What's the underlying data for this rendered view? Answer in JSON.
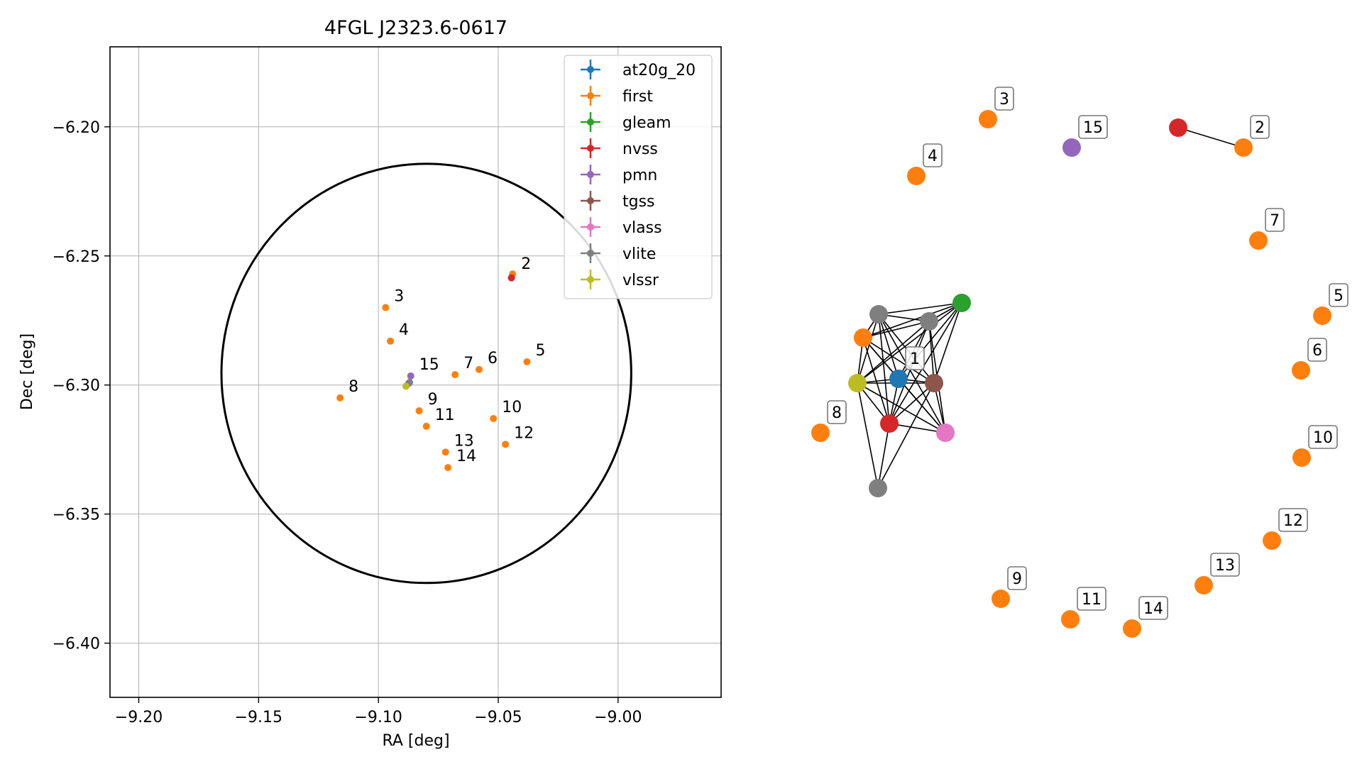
{
  "chart_data": [
    {
      "type": "scatter",
      "title": "4FGL J2323.6-0617",
      "xlabel": "RA [deg]",
      "ylabel": "Dec [deg]",
      "xlim": [
        -9.212,
        -8.957
      ],
      "ylim": [
        -6.421,
        -6.169
      ],
      "xticks": [
        -9.2,
        -9.15,
        -9.1,
        -9.05,
        -9.0
      ],
      "xtick_labels": [
        "−9.20",
        "−9.15",
        "−9.10",
        "−9.05",
        "−9.00"
      ],
      "yticks": [
        -6.2,
        -6.25,
        -6.3,
        -6.35,
        -6.4
      ],
      "ytick_labels": [
        "−6.20",
        "−6.25",
        "−6.30",
        "−6.35",
        "−6.40"
      ],
      "grid": true,
      "legend_position": "top-right",
      "ellipse": {
        "center": [
          -9.08,
          -6.2955
        ],
        "semi_axes": [
          0.0855,
          0.0812
        ],
        "color": "#000000"
      },
      "series": [
        {
          "name": "at20g_20",
          "color": "#1f77b4",
          "points": [
            {
              "x": -9.0875,
              "y": -6.2995
            }
          ]
        },
        {
          "name": "first",
          "color": "#ff7f0e",
          "points": [
            {
              "x": -9.044,
              "y": -6.257
            },
            {
              "x": -9.097,
              "y": -6.27
            },
            {
              "x": -9.095,
              "y": -6.283
            },
            {
              "x": -9.038,
              "y": -6.291
            },
            {
              "x": -9.058,
              "y": -6.294
            },
            {
              "x": -9.068,
              "y": -6.296
            },
            {
              "x": -9.116,
              "y": -6.305
            },
            {
              "x": -9.083,
              "y": -6.31
            },
            {
              "x": -9.052,
              "y": -6.313
            },
            {
              "x": -9.08,
              "y": -6.316
            },
            {
              "x": -9.047,
              "y": -6.323
            },
            {
              "x": -9.072,
              "y": -6.326
            },
            {
              "x": -9.071,
              "y": -6.332
            }
          ]
        },
        {
          "name": "gleam",
          "color": "#2ca02c",
          "points": [
            {
              "x": -9.0875,
              "y": -6.2995
            }
          ]
        },
        {
          "name": "nvss",
          "color": "#d62728",
          "points": [
            {
              "x": -9.0445,
              "y": -6.2585
            },
            {
              "x": -9.0875,
              "y": -6.2995
            }
          ]
        },
        {
          "name": "pmn",
          "color": "#9467bd",
          "points": [
            {
              "x": -9.0865,
              "y": -6.2965
            }
          ]
        },
        {
          "name": "tgss",
          "color": "#8c564b",
          "points": [
            {
              "x": -9.0875,
              "y": -6.2995
            }
          ]
        },
        {
          "name": "vlass",
          "color": "#e377c2",
          "points": [
            {
              "x": -9.0875,
              "y": -6.2995
            }
          ]
        },
        {
          "name": "vlite",
          "color": "#7f7f7f",
          "points": [
            {
              "x": -9.087,
              "y": -6.299
            }
          ]
        },
        {
          "name": "vlssr",
          "color": "#bcbd22",
          "points": [
            {
              "x": -9.0885,
              "y": -6.3005
            }
          ]
        }
      ],
      "annotations": [
        {
          "text": "1",
          "x": -9.0865,
          "y": -6.2965
        },
        {
          "text": "2",
          "x": -9.044,
          "y": -6.2575
        },
        {
          "text": "3",
          "x": -9.097,
          "y": -6.27
        },
        {
          "text": "4",
          "x": -9.095,
          "y": -6.283
        },
        {
          "text": "5",
          "x": -9.038,
          "y": -6.291
        },
        {
          "text": "6",
          "x": -9.058,
          "y": -6.294
        },
        {
          "text": "7",
          "x": -9.068,
          "y": -6.296
        },
        {
          "text": "8",
          "x": -9.116,
          "y": -6.305
        },
        {
          "text": "9",
          "x": -9.083,
          "y": -6.31
        },
        {
          "text": "10",
          "x": -9.052,
          "y": -6.313
        },
        {
          "text": "11",
          "x": -9.08,
          "y": -6.316
        },
        {
          "text": "12",
          "x": -9.047,
          "y": -6.323
        },
        {
          "text": "13",
          "x": -9.072,
          "y": -6.326
        },
        {
          "text": "14",
          "x": -9.071,
          "y": -6.332
        },
        {
          "text": "15",
          "x": -9.0865,
          "y": -6.2965
        }
      ]
    },
    {
      "type": "network",
      "nodes": [
        {
          "id": "n1",
          "color": "#1f77b4",
          "label": "1"
        },
        {
          "id": "n2",
          "color": "#ff7f0e",
          "label": ""
        },
        {
          "id": "n3",
          "color": "#2ca02c",
          "label": ""
        },
        {
          "id": "n4",
          "color": "#7f7f7f",
          "label": ""
        },
        {
          "id": "n5",
          "color": "#7f7f7f",
          "label": ""
        },
        {
          "id": "n6",
          "color": "#bcbd22",
          "label": ""
        },
        {
          "id": "n7",
          "color": "#8c564b",
          "label": ""
        },
        {
          "id": "n8",
          "color": "#d62728",
          "label": ""
        },
        {
          "id": "n9",
          "color": "#e377c2",
          "label": ""
        },
        {
          "id": "n10",
          "color": "#7f7f7f",
          "label": ""
        },
        {
          "id": "nvss2",
          "color": "#d62728",
          "label": ""
        },
        {
          "id": "first2",
          "color": "#ff7f0e",
          "label": "2"
        },
        {
          "id": "f3",
          "color": "#ff7f0e",
          "label": "3"
        },
        {
          "id": "f4",
          "color": "#ff7f0e",
          "label": "4"
        },
        {
          "id": "p15",
          "color": "#9467bd",
          "label": "15"
        },
        {
          "id": "f7",
          "color": "#ff7f0e",
          "label": "7"
        },
        {
          "id": "f5",
          "color": "#ff7f0e",
          "label": "5"
        },
        {
          "id": "f6",
          "color": "#ff7f0e",
          "label": "6"
        },
        {
          "id": "f8",
          "color": "#ff7f0e",
          "label": "8"
        },
        {
          "id": "f10",
          "color": "#ff7f0e",
          "label": "10"
        },
        {
          "id": "f12",
          "color": "#ff7f0e",
          "label": "12"
        },
        {
          "id": "f13",
          "color": "#ff7f0e",
          "label": "13"
        },
        {
          "id": "f9",
          "color": "#ff7f0e",
          "label": "9"
        },
        {
          "id": "f11",
          "color": "#ff7f0e",
          "label": "11"
        },
        {
          "id": "f14",
          "color": "#ff7f0e",
          "label": "14"
        }
      ],
      "edges": [
        [
          "n1",
          "n2"
        ],
        [
          "n1",
          "n3"
        ],
        [
          "n1",
          "n4"
        ],
        [
          "n1",
          "n5"
        ],
        [
          "n1",
          "n6"
        ],
        [
          "n1",
          "n7"
        ],
        [
          "n1",
          "n8"
        ],
        [
          "n1",
          "n9"
        ],
        [
          "n2",
          "n3"
        ],
        [
          "n2",
          "n4"
        ],
        [
          "n2",
          "n5"
        ],
        [
          "n2",
          "n6"
        ],
        [
          "n2",
          "n7"
        ],
        [
          "n2",
          "n8"
        ],
        [
          "n2",
          "n9"
        ],
        [
          "n3",
          "n4"
        ],
        [
          "n3",
          "n5"
        ],
        [
          "n3",
          "n6"
        ],
        [
          "n3",
          "n7"
        ],
        [
          "n3",
          "n8"
        ],
        [
          "n4",
          "n5"
        ],
        [
          "n4",
          "n6"
        ],
        [
          "n4",
          "n7"
        ],
        [
          "n4",
          "n8"
        ],
        [
          "n4",
          "n9"
        ],
        [
          "n5",
          "n6"
        ],
        [
          "n5",
          "n7"
        ],
        [
          "n5",
          "n8"
        ],
        [
          "n5",
          "n9"
        ],
        [
          "n6",
          "n7"
        ],
        [
          "n6",
          "n8"
        ],
        [
          "n6",
          "n9"
        ],
        [
          "n6",
          "n10"
        ],
        [
          "n7",
          "n8"
        ],
        [
          "n7",
          "n9"
        ],
        [
          "n7",
          "n10"
        ],
        [
          "n8",
          "n9"
        ],
        [
          "n8",
          "n10"
        ],
        [
          "nvss2",
          "first2"
        ]
      ]
    }
  ]
}
